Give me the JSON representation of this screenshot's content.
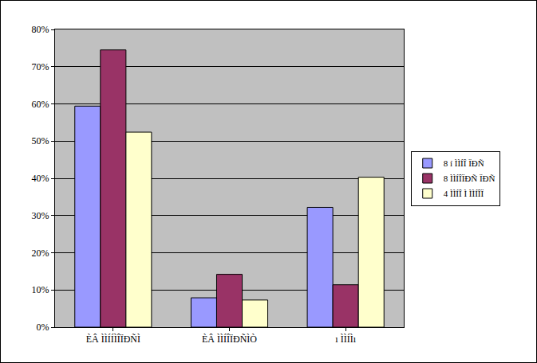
{
  "chart_data": {
    "type": "bar",
    "categories": [
      "ÈÂ ÌÌÍÍÌÎÏÐÑÌ",
      "ÈÂ ÌÌÍÎÏÐÑÌÒ",
      "ı ÌÌÍÌı"
    ],
    "series": [
      {
        "name": "8 í ÌÌÍÎ ÏÐÑ",
        "color": "#9999FF",
        "values": [
          59.4,
          7.9,
          32.2
        ]
      },
      {
        "name": "8 ÌÌÍÎÏÐÑ ÏÐÑ",
        "color": "#993366",
        "values": [
          74.5,
          14.2,
          11.4
        ]
      },
      {
        "name": "4 ÌÌÍÎ Ì ÌÌÍÎÏ",
        "color": "#FFFFCC",
        "values": [
          52.4,
          7.3,
          40.3
        ]
      }
    ],
    "ylim": [
      0,
      80
    ],
    "yticks": [
      {
        "value": 0,
        "label": "0%"
      },
      {
        "value": 10,
        "label": "10%"
      },
      {
        "value": 20,
        "label": "20%"
      },
      {
        "value": 30,
        "label": "30%"
      },
      {
        "value": 40,
        "label": "40%"
      },
      {
        "value": 50,
        "label": "50%"
      },
      {
        "value": 60,
        "label": "60%"
      },
      {
        "value": 70,
        "label": "70%"
      },
      {
        "value": 80,
        "label": "80%"
      }
    ],
    "grid": true,
    "legend": "right"
  }
}
